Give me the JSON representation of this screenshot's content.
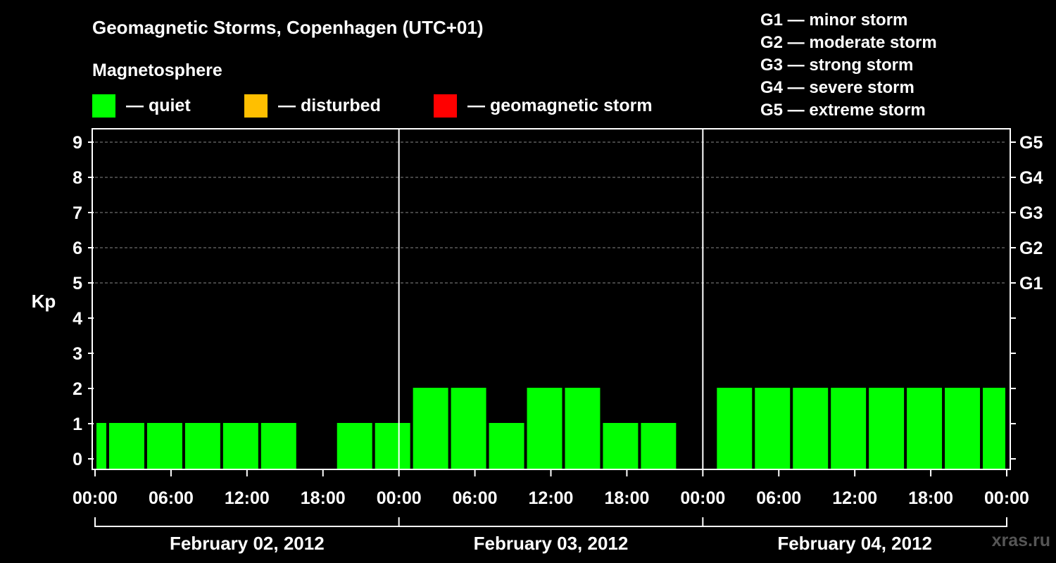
{
  "title": "Geomagnetic Storms, Copenhagen (UTC+01)",
  "subtitle": "Magnetosphere",
  "legend": [
    {
      "color": "#00ff00",
      "label": "— quiet"
    },
    {
      "color": "#ffbf00",
      "label": "— disturbed"
    },
    {
      "color": "#ff0000",
      "label": "— geomagnetic storm"
    }
  ],
  "storm_scale": [
    "G1 — minor storm",
    "G2 — moderate storm",
    "G3 — strong storm",
    "G4 — severe storm",
    "G5 — extreme storm"
  ],
  "watermark": "xras.ru",
  "chart_data": {
    "type": "bar",
    "ylabel": "Kp",
    "xlabel": "",
    "ylim": [
      0,
      9
    ],
    "yticks": [
      0,
      1,
      2,
      3,
      4,
      5,
      6,
      7,
      8,
      9
    ],
    "right_axis_labels": [
      {
        "kp": 5,
        "label": "G1"
      },
      {
        "kp": 6,
        "label": "G2"
      },
      {
        "kp": 7,
        "label": "G3"
      },
      {
        "kp": 8,
        "label": "G4"
      },
      {
        "kp": 9,
        "label": "G5"
      }
    ],
    "xticks": [
      "00:00",
      "06:00",
      "12:00",
      "18:00",
      "00:00",
      "06:00",
      "12:00",
      "18:00",
      "00:00",
      "06:00",
      "12:00",
      "18:00",
      "00:00"
    ],
    "dates": [
      "February 02, 2012",
      "February 03, 2012",
      "February 04, 2012"
    ],
    "grid": "dashed horizontal at Kp 5-9",
    "bar_color": "#00ff00",
    "bars": [
      {
        "start_hour": 0,
        "end_hour": 1,
        "kp": 1
      },
      {
        "start_hour": 1,
        "end_hour": 4,
        "kp": 1
      },
      {
        "start_hour": 4,
        "end_hour": 7,
        "kp": 1
      },
      {
        "start_hour": 7,
        "end_hour": 10,
        "kp": 1
      },
      {
        "start_hour": 10,
        "end_hour": 13,
        "kp": 1
      },
      {
        "start_hour": 13,
        "end_hour": 16,
        "kp": 1
      },
      {
        "start_hour": 19,
        "end_hour": 22,
        "kp": 1
      },
      {
        "start_hour": 22,
        "end_hour": 25,
        "kp": 1
      },
      {
        "start_hour": 25,
        "end_hour": 28,
        "kp": 2
      },
      {
        "start_hour": 28,
        "end_hour": 31,
        "kp": 2
      },
      {
        "start_hour": 31,
        "end_hour": 34,
        "kp": 1
      },
      {
        "start_hour": 34,
        "end_hour": 37,
        "kp": 2
      },
      {
        "start_hour": 37,
        "end_hour": 40,
        "kp": 2
      },
      {
        "start_hour": 40,
        "end_hour": 43,
        "kp": 1
      },
      {
        "start_hour": 43,
        "end_hour": 46,
        "kp": 1
      },
      {
        "start_hour": 49,
        "end_hour": 52,
        "kp": 2
      },
      {
        "start_hour": 52,
        "end_hour": 55,
        "kp": 2
      },
      {
        "start_hour": 55,
        "end_hour": 58,
        "kp": 2
      },
      {
        "start_hour": 58,
        "end_hour": 61,
        "kp": 2
      },
      {
        "start_hour": 61,
        "end_hour": 64,
        "kp": 2
      },
      {
        "start_hour": 64,
        "end_hour": 67,
        "kp": 2
      },
      {
        "start_hour": 67,
        "end_hour": 70,
        "kp": 2
      },
      {
        "start_hour": 70,
        "end_hour": 72,
        "kp": 2
      }
    ]
  }
}
